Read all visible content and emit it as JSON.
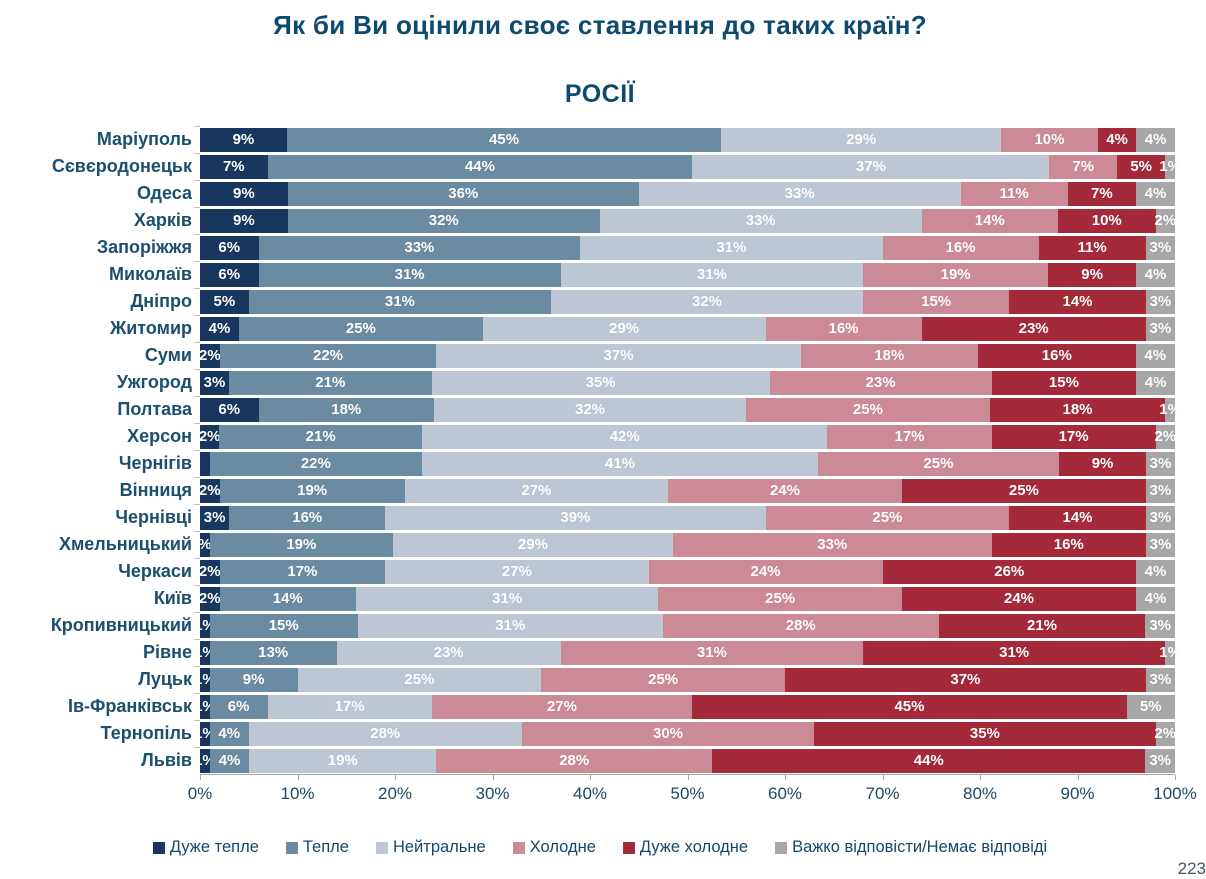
{
  "title": "Як би Ви оцінили своє ставлення до таких країн?",
  "subtitle": "РОСІЇ",
  "page_number": "223",
  "colors": {
    "title_text": "#0E4A6F",
    "category_text": "#1C4E6E",
    "axis_text": "#1F4963",
    "legend_text": "#17466B",
    "axis_line": "#A6A6A6"
  },
  "chart_data": {
    "type": "bar",
    "orientation": "horizontal",
    "stacked": true,
    "title": "Як би Ви оцінили своє ставлення до таких країн?",
    "subtitle": "РОСІЇ",
    "xlim": [
      0,
      100
    ],
    "x_ticks": [
      "0%",
      "10%",
      "20%",
      "30%",
      "40%",
      "50%",
      "60%",
      "70%",
      "80%",
      "90%",
      "100%"
    ],
    "legend_position": "bottom",
    "series_names": [
      "Дуже тепле",
      "Тепле",
      "Нейтральне",
      "Холодне",
      "Дуже холодне",
      "Важко відповісти/Немає відповіді"
    ],
    "series_colors": [
      "#17375E",
      "#6B8BA3",
      "#BDC6D3",
      "#CB8A96",
      "#A42A3A",
      "#A7A7A7"
    ],
    "rows": [
      {
        "city": "Маріуполь",
        "values": [
          9,
          45,
          29,
          10,
          4,
          4
        ],
        "labels": [
          "9%",
          "45%",
          "29%",
          "10%",
          "4%",
          "4%"
        ]
      },
      {
        "city": "Сєвєродонецьк",
        "values": [
          7,
          44,
          37,
          7,
          5,
          1
        ],
        "labels": [
          "7%",
          "44%",
          "37%",
          "7%",
          "5%",
          "1%"
        ]
      },
      {
        "city": "Одеса",
        "values": [
          9,
          36,
          33,
          11,
          7,
          4
        ],
        "labels": [
          "9%",
          "36%",
          "33%",
          "11%",
          "7%",
          "4%"
        ]
      },
      {
        "city": "Харків",
        "values": [
          9,
          32,
          33,
          14,
          10,
          2
        ],
        "labels": [
          "9%",
          "32%",
          "33%",
          "14%",
          "10%",
          "2%"
        ]
      },
      {
        "city": "Запоріжжя",
        "values": [
          6,
          33,
          31,
          16,
          11,
          3
        ],
        "labels": [
          "6%",
          "33%",
          "31%",
          "16%",
          "11%",
          "3%"
        ]
      },
      {
        "city": "Миколаїв",
        "values": [
          6,
          31,
          31,
          19,
          9,
          4
        ],
        "labels": [
          "6%",
          "31%",
          "31%",
          "19%",
          "9%",
          "4%"
        ]
      },
      {
        "city": "Дніпро",
        "values": [
          5,
          31,
          32,
          15,
          14,
          3
        ],
        "labels": [
          "5%",
          "31%",
          "32%",
          "15%",
          "14%",
          "3%"
        ]
      },
      {
        "city": "Житомир",
        "values": [
          4,
          25,
          29,
          16,
          23,
          3
        ],
        "labels": [
          "4%",
          "25%",
          "29%",
          "16%",
          "23%",
          "3%"
        ]
      },
      {
        "city": "Суми",
        "values": [
          2,
          22,
          37,
          18,
          16,
          4
        ],
        "labels": [
          "2%",
          "22%",
          "37%",
          "18%",
          "16%",
          "4%"
        ]
      },
      {
        "city": "Ужгород",
        "values": [
          3,
          21,
          35,
          23,
          15,
          4
        ],
        "labels": [
          "3%",
          "21%",
          "35%",
          "23%",
          "15%",
          "4%"
        ]
      },
      {
        "city": "Полтава",
        "values": [
          6,
          18,
          32,
          25,
          18,
          1
        ],
        "labels": [
          "6%",
          "18%",
          "32%",
          "25%",
          "18%",
          "1%"
        ]
      },
      {
        "city": "Херсон",
        "values": [
          2,
          21,
          42,
          17,
          17,
          2
        ],
        "labels": [
          "2%",
          "21%",
          "42%",
          "17%",
          "17%",
          "2%"
        ]
      },
      {
        "city": "Чернігів",
        "values": [
          1,
          22,
          41,
          25,
          9,
          3
        ],
        "labels": [
          "",
          "22%",
          "41%",
          "25%",
          "9%",
          "3%"
        ]
      },
      {
        "city": "Вінниця",
        "values": [
          2,
          19,
          27,
          24,
          25,
          3
        ],
        "labels": [
          "2%",
          "19%",
          "27%",
          "24%",
          "25%",
          "3%"
        ]
      },
      {
        "city": "Чернівці",
        "values": [
          3,
          16,
          39,
          25,
          14,
          3
        ],
        "labels": [
          "3%",
          "16%",
          "39%",
          "25%",
          "14%",
          "3%"
        ]
      },
      {
        "city": "Хмельницький",
        "values": [
          1,
          19,
          29,
          33,
          16,
          3
        ],
        "labels": [
          "%",
          "19%",
          "29%",
          "33%",
          "16%",
          "3%"
        ]
      },
      {
        "city": "Черкаси",
        "values": [
          2,
          17,
          27,
          24,
          26,
          4
        ],
        "labels": [
          "2%",
          "17%",
          "27%",
          "24%",
          "26%",
          "4%"
        ]
      },
      {
        "city": "Київ",
        "values": [
          2,
          14,
          31,
          25,
          24,
          4
        ],
        "labels": [
          "2%",
          "14%",
          "31%",
          "25%",
          "24%",
          "4%"
        ]
      },
      {
        "city": "Кропивницький",
        "values": [
          1,
          15,
          31,
          28,
          21,
          3
        ],
        "labels": [
          "1%",
          "15%",
          "31%",
          "28%",
          "21%",
          "3%"
        ]
      },
      {
        "city": "Рівне",
        "values": [
          1,
          13,
          23,
          31,
          31,
          1
        ],
        "labels": [
          "1%",
          "13%",
          "23%",
          "31%",
          "31%",
          "1%"
        ]
      },
      {
        "city": "Луцьк",
        "values": [
          1,
          9,
          25,
          25,
          37,
          3
        ],
        "labels": [
          "1%",
          "9%",
          "25%",
          "25%",
          "37%",
          "3%"
        ]
      },
      {
        "city": "Ів-Франківськ",
        "values": [
          1,
          6,
          17,
          27,
          45,
          5
        ],
        "labels": [
          "1%",
          "6%",
          "17%",
          "27%",
          "45%",
          "5%"
        ]
      },
      {
        "city": "Тернопіль",
        "values": [
          1,
          4,
          28,
          30,
          35,
          2
        ],
        "labels": [
          "1%",
          "4%",
          "28%",
          "30%",
          "35%",
          "2%"
        ]
      },
      {
        "city": "Львів",
        "values": [
          1,
          4,
          19,
          28,
          44,
          3
        ],
        "labels": [
          "1%",
          "4%",
          "19%",
          "28%",
          "44%",
          "3%"
        ]
      }
    ]
  }
}
